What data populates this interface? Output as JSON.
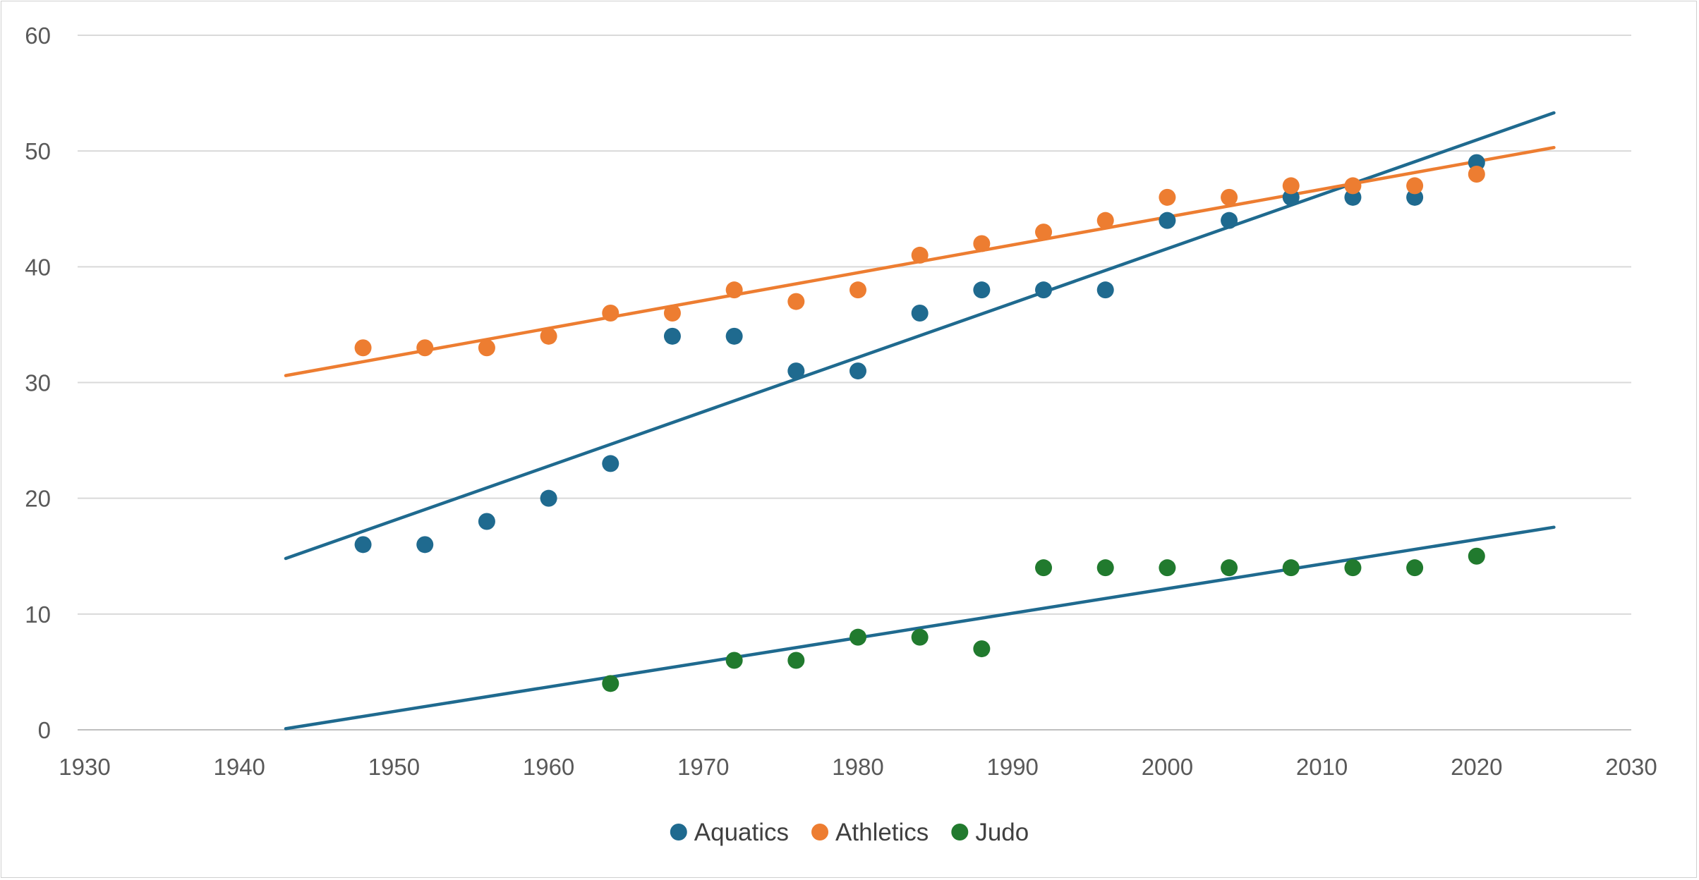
{
  "chart_data": {
    "type": "scatter",
    "title": "",
    "xlabel": "",
    "ylabel": "",
    "xlim": [
      1930,
      2030
    ],
    "ylim": [
      0,
      60
    ],
    "x_ticks": [
      1930,
      1940,
      1950,
      1960,
      1970,
      1980,
      1990,
      2000,
      2010,
      2020,
      2030
    ],
    "y_ticks": [
      0,
      10,
      20,
      30,
      40,
      50,
      60
    ],
    "grid": "horizontal",
    "legend_position": "bottom-center",
    "series": [
      {
        "name": "Aquatics",
        "color": "#1f6a8f",
        "points": [
          [
            1948,
            16
          ],
          [
            1952,
            16
          ],
          [
            1956,
            18
          ],
          [
            1960,
            20
          ],
          [
            1964,
            23
          ],
          [
            1968,
            34
          ],
          [
            1972,
            34
          ],
          [
            1976,
            31
          ],
          [
            1980,
            31
          ],
          [
            1984,
            36
          ],
          [
            1988,
            38
          ],
          [
            1992,
            38
          ],
          [
            1996,
            38
          ],
          [
            2000,
            44
          ],
          [
            2004,
            44
          ],
          [
            2008,
            46
          ],
          [
            2012,
            46
          ],
          [
            2016,
            46
          ],
          [
            2020,
            49
          ]
        ],
        "trendline": {
          "type": "linear",
          "color": "#1f6a8f",
          "from": [
            1943,
            14.8
          ],
          "to": [
            2025,
            53.3
          ]
        }
      },
      {
        "name": "Athletics",
        "color": "#ed7d31",
        "points": [
          [
            1948,
            33
          ],
          [
            1952,
            33
          ],
          [
            1956,
            33
          ],
          [
            1960,
            34
          ],
          [
            1964,
            36
          ],
          [
            1968,
            36
          ],
          [
            1972,
            38
          ],
          [
            1976,
            37
          ],
          [
            1980,
            38
          ],
          [
            1984,
            41
          ],
          [
            1988,
            42
          ],
          [
            1992,
            43
          ],
          [
            1996,
            44
          ],
          [
            2000,
            46
          ],
          [
            2004,
            46
          ],
          [
            2008,
            47
          ],
          [
            2012,
            47
          ],
          [
            2016,
            47
          ],
          [
            2020,
            48
          ]
        ],
        "trendline": {
          "type": "linear",
          "color": "#ed7d31",
          "from": [
            1943,
            30.6
          ],
          "to": [
            2025,
            50.3
          ]
        }
      },
      {
        "name": "Judo",
        "color": "#217a2e",
        "points": [
          [
            1964,
            4
          ],
          [
            1972,
            6
          ],
          [
            1976,
            6
          ],
          [
            1980,
            8
          ],
          [
            1984,
            8
          ],
          [
            1988,
            7
          ],
          [
            1992,
            14
          ],
          [
            1996,
            14
          ],
          [
            2000,
            14
          ],
          [
            2004,
            14
          ],
          [
            2008,
            14
          ],
          [
            2012,
            14
          ],
          [
            2016,
            14
          ],
          [
            2020,
            15
          ]
        ],
        "trendline": {
          "type": "linear",
          "color": "#1f6a8f",
          "from": [
            1943,
            0.1
          ],
          "to": [
            2025,
            17.5
          ]
        }
      }
    ]
  }
}
